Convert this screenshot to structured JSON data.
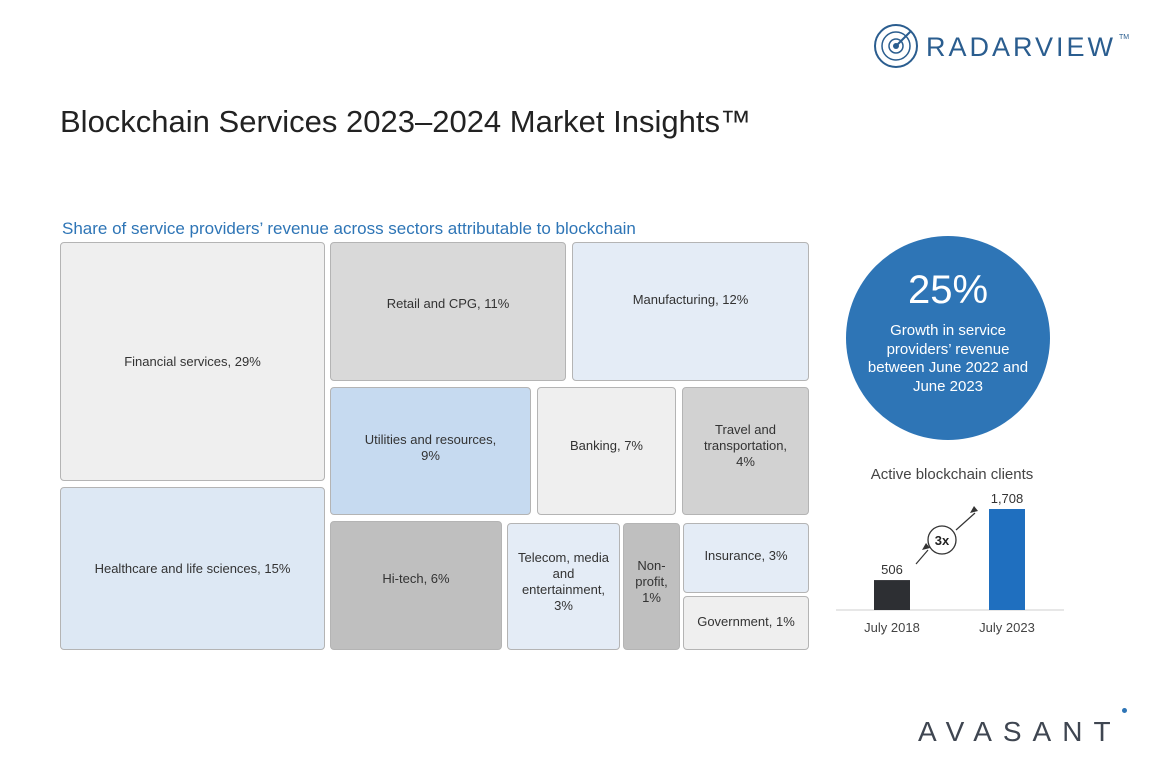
{
  "header": {
    "brand": "RADARVIEW",
    "brand_tm": "TM"
  },
  "page_title": "Blockchain Services 2023–2024 Market Insights™",
  "footer": {
    "brand": "AVASANT"
  },
  "chart_data": [
    {
      "type": "treemap",
      "title": "Share of service providers’ revenue across sectors attributable to blockchain",
      "unit": "%",
      "categories": [
        {
          "label": "Financial services, 29%",
          "sector": "Financial services",
          "value": 29
        },
        {
          "label": "Healthcare and life sciences, 15%",
          "sector": "Healthcare and life sciences",
          "value": 15
        },
        {
          "label": "Retail and CPG, 11%",
          "sector": "Retail and CPG",
          "value": 11
        },
        {
          "label": "Manufacturing, 12%",
          "sector": "Manufacturing",
          "value": 12
        },
        {
          "label": "Utilities and resources, 9%",
          "sector": "Utilities and resources",
          "value": 9
        },
        {
          "label": "Banking, 7%",
          "sector": "Banking",
          "value": 7
        },
        {
          "label": "Travel and transportation, 4%",
          "sector": "Travel and transportation",
          "value": 4
        },
        {
          "label": "Hi-tech, 6%",
          "sector": "Hi-tech",
          "value": 6
        },
        {
          "label": "Telecom, media and entertainment, 3%",
          "sector": "Telecom, media and entertainment",
          "value": 3
        },
        {
          "label": "Non-profit, 1%",
          "sector": "Non-profit",
          "value": 1
        },
        {
          "label": "Insurance, 3%",
          "sector": "Insurance",
          "value": 3
        },
        {
          "label": "Government, 1%",
          "sector": "Government",
          "value": 1
        }
      ],
      "colors": {
        "financial": "#efefef",
        "healthcare": "#dde8f4",
        "retail": "#d9d9d9",
        "manufacturing": "#e4ecf6",
        "utilities": "#c6daf0",
        "banking": "#efefef",
        "travel": "#d2d2d2",
        "hitech": "#bfbfbf",
        "telecom": "#e4ecf6",
        "nonprofit": "#bfbfbf",
        "insurance": "#e4ecf6",
        "government": "#efefef"
      }
    },
    {
      "type": "bar",
      "title": "Active blockchain clients",
      "categories": [
        "July 2018",
        "July 2023"
      ],
      "values": [
        506,
        1708
      ],
      "value_labels": [
        "506",
        "1,708"
      ],
      "colors": [
        "#2d2f33",
        "#1f6fbf"
      ],
      "annotation": "3x",
      "ylim": [
        0,
        1708
      ]
    }
  ],
  "growth": {
    "value": "25%",
    "description": "Growth in service providers’ revenue between June 2022 and June 2023",
    "color": "#2e75b6"
  }
}
